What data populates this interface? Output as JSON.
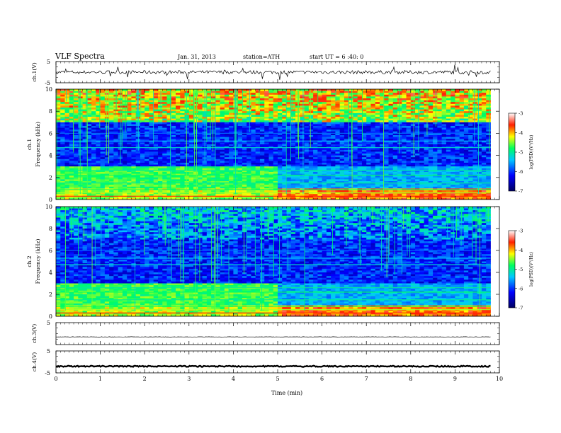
{
  "header": {
    "title": "VLF Spectra",
    "date": "Jan. 31, 2013",
    "station": "station=ATH",
    "start": "start  UT =  6 :40: 0"
  },
  "chart_data": {
    "type": "heatmap",
    "xlabel": "Time  (min)",
    "xlim": [
      0,
      10
    ],
    "x_ticks": [
      "0",
      "1",
      "2",
      "3",
      "4",
      "5",
      "6",
      "7",
      "8",
      "9",
      "10"
    ],
    "data_end_min": 9.8,
    "panels": [
      {
        "id": "ch1-voltage",
        "type": "line",
        "ylabel": "ch.1(V)",
        "ylim": [
          -5,
          5
        ],
        "y_ticks": [
          "5",
          "-5"
        ],
        "baseline": 0
      },
      {
        "id": "ch1-spectrogram",
        "type": "heatmap",
        "channel": "ch.1",
        "ylabel": "Frequency  (kHz)",
        "ylim": [
          0,
          10
        ],
        "y_ticks": [
          "0",
          "2",
          "4",
          "6",
          "8",
          "10"
        ],
        "colorbar": {
          "label": "log(PSD)(V²/Hz)",
          "range": [
            -7,
            -3
          ],
          "ticks": [
            "-3",
            "-4",
            "-5",
            "-6",
            "-7"
          ]
        }
      },
      {
        "id": "ch2-spectrogram",
        "type": "heatmap",
        "channel": "ch.2",
        "ylabel": "Frequency  (kHz)",
        "ylim": [
          0,
          10
        ],
        "y_ticks": [
          "0",
          "2",
          "4",
          "6",
          "8",
          "10"
        ],
        "colorbar": {
          "label": "log(PSD)(V²/Hz)",
          "range": [
            -7,
            -3
          ],
          "ticks": [
            "-3",
            "-4",
            "-5",
            "-6",
            "-7"
          ]
        }
      },
      {
        "id": "ch3-voltage",
        "type": "line",
        "ylabel": "ch.3(V)",
        "ylim": [
          -5,
          5
        ],
        "y_ticks": [
          "5"
        ],
        "baseline": -1.5
      },
      {
        "id": "ch4-voltage",
        "type": "line",
        "ylabel": "ch.4(V)",
        "ylim": [
          -5,
          5
        ],
        "y_ticks": [
          "5",
          "-5"
        ],
        "baseline": -2
      }
    ]
  }
}
